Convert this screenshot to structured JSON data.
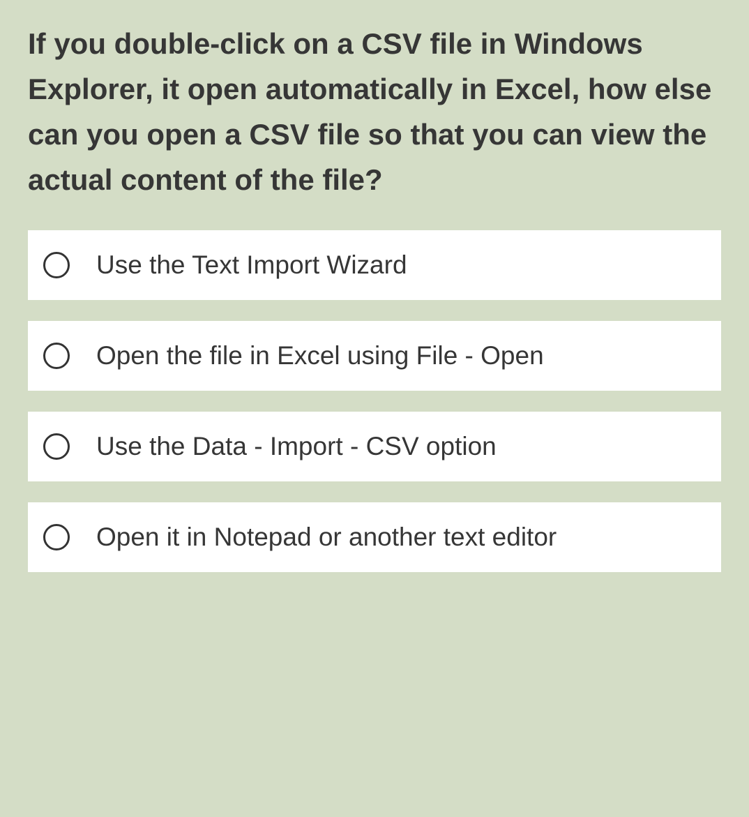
{
  "question": {
    "text": "If you double-click on a CSV file in Windows Explorer, it open automatically in Excel, how else can you open a CSV file so that you can view the actual content of the file?"
  },
  "options": [
    {
      "label": "Use the Text Import Wizard",
      "selected": false
    },
    {
      "label": "Open the file in Excel using File - Open",
      "selected": false
    },
    {
      "label": "Use the Data - Import - CSV option",
      "selected": false
    },
    {
      "label": "Open it in Notepad or another text editor",
      "selected": false
    }
  ],
  "colors": {
    "page_background": "#d4ddc6",
    "option_background": "#ffffff",
    "text_color": "#363636",
    "radio_border": "#333333"
  },
  "typography": {
    "question_fontsize": 42,
    "question_fontweight": "bold",
    "option_fontsize": 37
  }
}
